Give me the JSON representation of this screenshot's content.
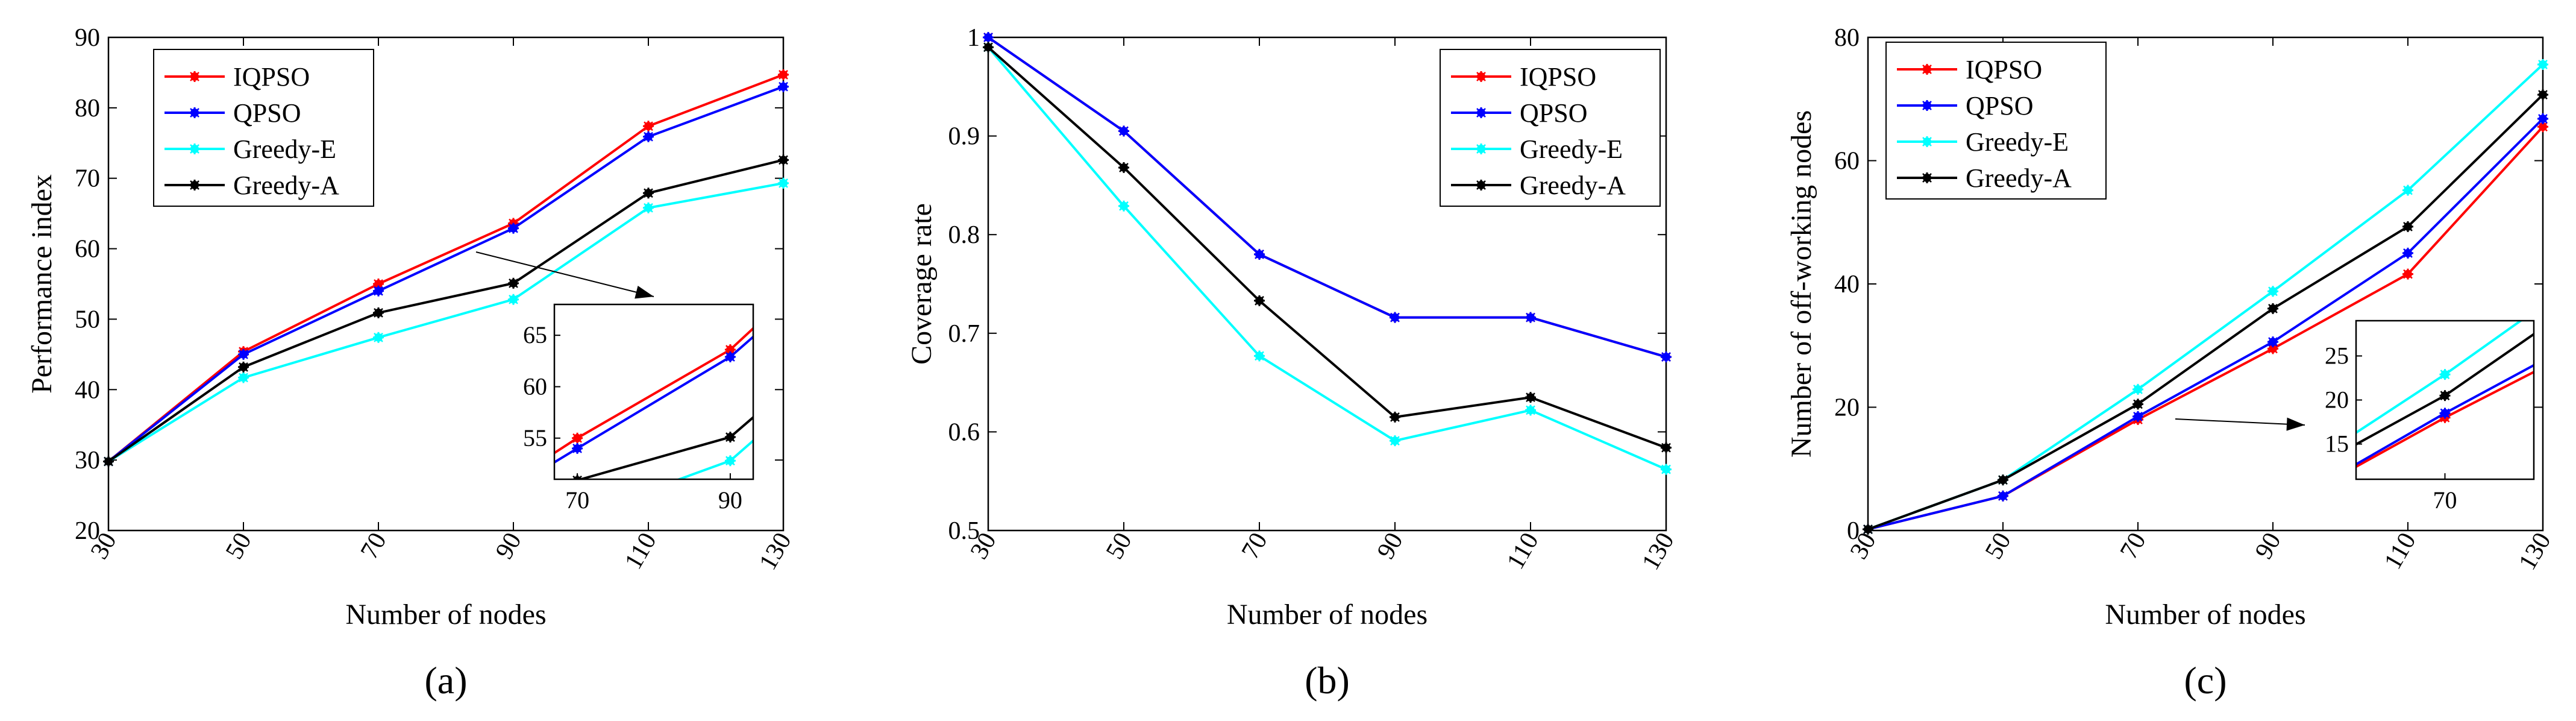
{
  "chart_data": [
    {
      "type": "line",
      "panel_label": "(a)",
      "xlabel": "Number of nodes",
      "ylabel": "Performance index",
      "x": [
        30,
        50,
        70,
        90,
        110,
        130
      ],
      "xlim": [
        30,
        130
      ],
      "ylim": [
        20,
        90
      ],
      "xticks": [
        "30",
        "50",
        "70",
        "90",
        "110",
        "130"
      ],
      "yticks": [
        "20",
        "30",
        "40",
        "50",
        "60",
        "70",
        "80",
        "90"
      ],
      "legend_position": "top-left",
      "series": [
        {
          "name": "IQPSO",
          "color": "#ff0000",
          "values": [
            29.8,
            45.4,
            55.0,
            63.6,
            77.4,
            84.7
          ]
        },
        {
          "name": "QPSO",
          "color": "#0000ff",
          "values": [
            29.8,
            45.0,
            54.0,
            62.9,
            75.9,
            83.0
          ]
        },
        {
          "name": "Greedy-E",
          "color": "#00ffff",
          "values": [
            29.8,
            41.7,
            47.4,
            52.8,
            65.8,
            69.3
          ]
        },
        {
          "name": "Greedy-A",
          "color": "#000000",
          "values": [
            29.8,
            43.2,
            50.9,
            55.1,
            67.9,
            72.6
          ]
        }
      ],
      "inset": {
        "xlim": [
          67,
          93
        ],
        "ylim": [
          51,
          68
        ],
        "xticks": [
          "70",
          "90"
        ],
        "yticks": [
          "55",
          "60",
          "65"
        ]
      }
    },
    {
      "type": "line",
      "panel_label": "(b)",
      "xlabel": "Number of nodes",
      "ylabel": "Coverage rate",
      "x": [
        30,
        50,
        70,
        90,
        110,
        130
      ],
      "xlim": [
        30,
        130
      ],
      "ylim": [
        0.5,
        1.0
      ],
      "xticks": [
        "30",
        "50",
        "70",
        "90",
        "110",
        "130"
      ],
      "yticks": [
        "0.5",
        "0.6",
        "0.7",
        "0.8",
        "0.9",
        "1"
      ],
      "legend_position": "top-right",
      "series": [
        {
          "name": "IQPSO",
          "color": "#ff0000",
          "values": [
            1.0,
            0.905,
            0.78,
            0.716,
            0.716,
            0.676
          ]
        },
        {
          "name": "QPSO",
          "color": "#0000ff",
          "values": [
            1.0,
            0.905,
            0.78,
            0.716,
            0.716,
            0.676
          ]
        },
        {
          "name": "Greedy-E",
          "color": "#00ffff",
          "values": [
            0.99,
            0.829,
            0.677,
            0.591,
            0.622,
            0.562
          ]
        },
        {
          "name": "Greedy-A",
          "color": "#000000",
          "values": [
            0.99,
            0.868,
            0.733,
            0.615,
            0.635,
            0.584
          ]
        }
      ]
    },
    {
      "type": "line",
      "panel_label": "(c)",
      "xlabel": "Number of nodes",
      "ylabel": "Number of off-working nodes",
      "x": [
        30,
        50,
        70,
        90,
        110,
        130
      ],
      "xlim": [
        30,
        130
      ],
      "ylim": [
        0,
        80
      ],
      "xticks": [
        "30",
        "50",
        "70",
        "90",
        "110",
        "130"
      ],
      "yticks": [
        "0",
        "20",
        "40",
        "60",
        "80"
      ],
      "legend_position": "top-left",
      "series": [
        {
          "name": "IQPSO",
          "color": "#ff0000",
          "values": [
            0.2,
            5.6,
            18.0,
            29.5,
            41.6,
            65.5
          ]
        },
        {
          "name": "QPSO",
          "color": "#0000ff",
          "values": [
            0.2,
            5.6,
            18.5,
            30.6,
            45.0,
            66.8
          ]
        },
        {
          "name": "Greedy-E",
          "color": "#00ffff",
          "values": [
            0.2,
            8.2,
            22.9,
            38.8,
            55.2,
            75.6
          ]
        },
        {
          "name": "Greedy-A",
          "color": "#000000",
          "values": [
            0.2,
            8.2,
            20.5,
            36.0,
            49.3,
            70.7
          ]
        }
      ],
      "inset": {
        "xlim": [
          61,
          79
        ],
        "ylim": [
          11,
          29
        ],
        "xticks": [
          "70"
        ],
        "yticks": [
          "15",
          "20",
          "25"
        ]
      }
    }
  ]
}
